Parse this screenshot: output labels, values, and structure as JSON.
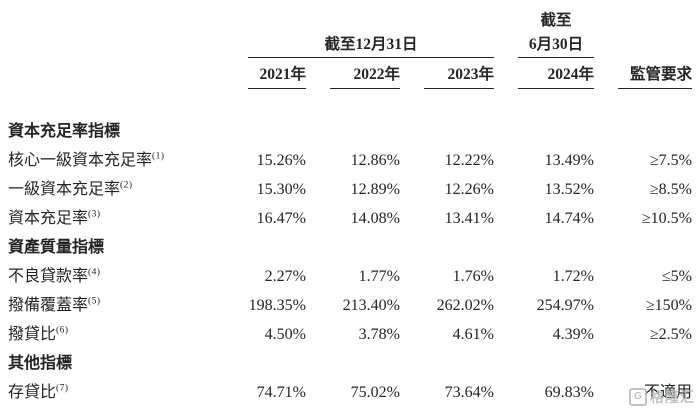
{
  "page": {
    "background": "#ffffff",
    "text_color": "#242424",
    "rule_color": "#262626"
  },
  "table": {
    "header": {
      "period_dec": "截至12月31日",
      "period_jun_line1": "截至",
      "period_jun_line2": "6月30日",
      "years": [
        "2021年",
        "2022年",
        "2023年",
        "2024年"
      ],
      "regulatory": "監管要求"
    },
    "sections": [
      {
        "title": "資本充足率指標",
        "rows": [
          {
            "label": "核心一級資本充足率",
            "sup": "(1)",
            "values": [
              "15.26%",
              "12.86%",
              "12.22%",
              "13.49%"
            ],
            "req": "≥7.5%"
          },
          {
            "label": "一級資本充足率",
            "sup": "(2)",
            "values": [
              "15.30%",
              "12.89%",
              "12.26%",
              "13.52%"
            ],
            "req": "≥8.5%"
          },
          {
            "label": "資本充足率",
            "sup": "(3)",
            "values": [
              "16.47%",
              "14.08%",
              "13.41%",
              "14.74%"
            ],
            "req": "≥10.5%"
          }
        ]
      },
      {
        "title": "資產質量指標",
        "rows": [
          {
            "label": "不良貸款率",
            "sup": "(4)",
            "values": [
              "2.27%",
              "1.77%",
              "1.76%",
              "1.72%"
            ],
            "req": "≤5%"
          },
          {
            "label": "撥備覆蓋率",
            "sup": "(5)",
            "values": [
              "198.35%",
              "213.40%",
              "262.02%",
              "254.97%"
            ],
            "req": "≥150%"
          },
          {
            "label": "撥貸比",
            "sup": "(6)",
            "values": [
              "4.50%",
              "3.78%",
              "4.61%",
              "4.39%"
            ],
            "req": "≥2.5%"
          }
        ]
      },
      {
        "title": "其他指標",
        "rows": [
          {
            "label": "存貸比",
            "sup": "(7)",
            "values": [
              "74.71%",
              "75.02%",
              "73.64%",
              "69.83%"
            ],
            "req": "不適用"
          }
        ]
      }
    ]
  },
  "watermark": {
    "icon_letter": "G",
    "text": "格隆汇"
  }
}
